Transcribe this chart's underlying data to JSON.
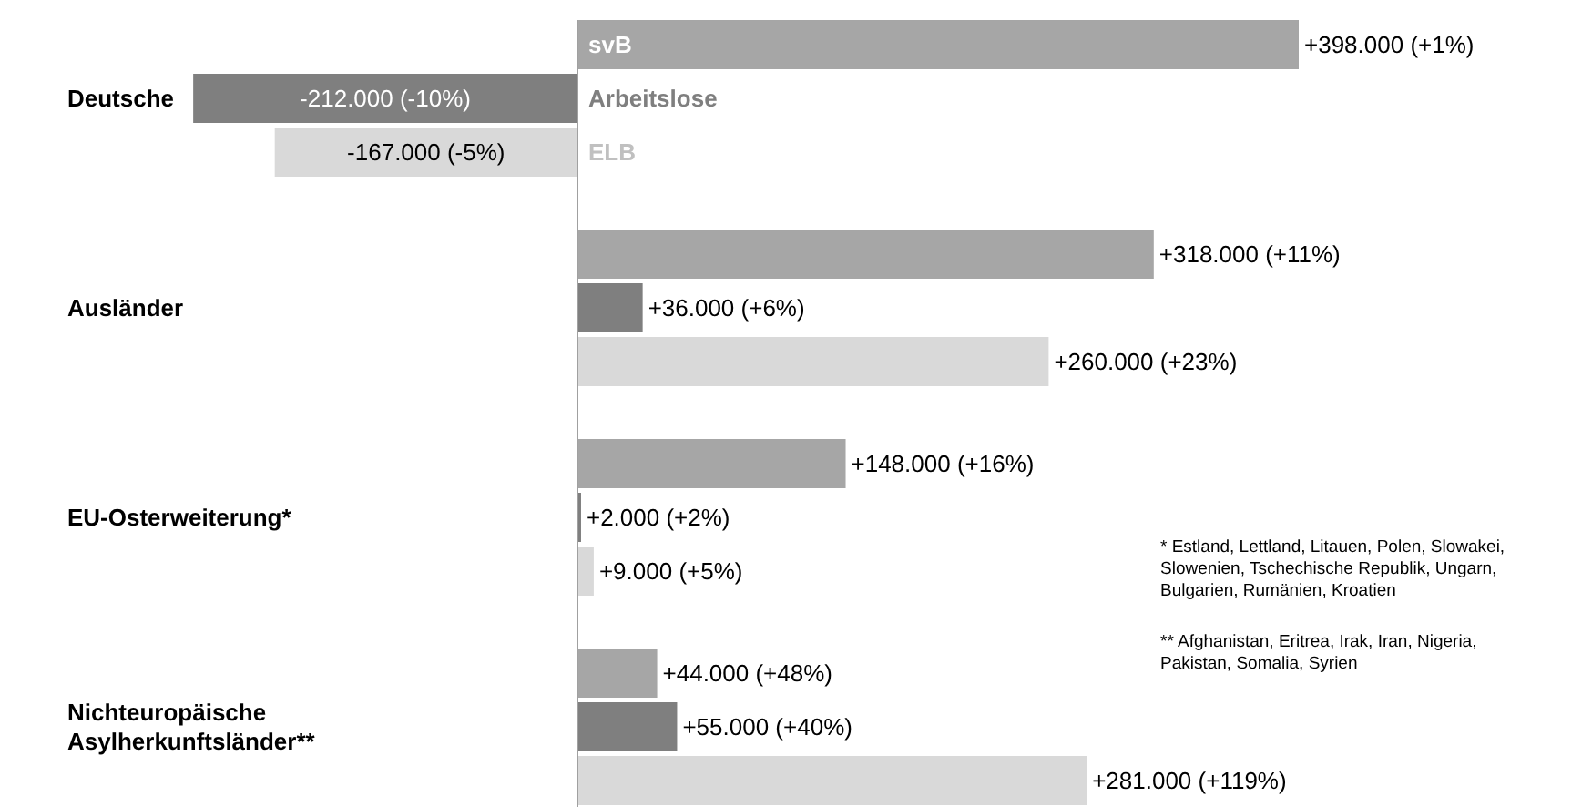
{
  "chart_data": {
    "type": "bar",
    "orientation": "horizontal",
    "categories": [
      "Deutsche",
      "Ausländer",
      "EU-Osterweiterung*",
      "Nichteuropäische Asylherkunftsländer**"
    ],
    "series": [
      {
        "name": "svB",
        "color": "#a6a6a6",
        "values": [
          398000,
          318000,
          148000,
          44000
        ],
        "value_labels": [
          "+398.000 (+1%)",
          "+318.000 (+11%)",
          "+148.000 (+16%)",
          "+44.000 (+48%)"
        ]
      },
      {
        "name": "Arbeitslose",
        "color": "#7f7f7f",
        "values": [
          -212000,
          36000,
          2000,
          55000
        ],
        "value_labels": [
          "-212.000 (-10%)",
          "+36.000 (+6%)",
          "+2.000 (+2%)",
          "+55.000 (+40%)"
        ]
      },
      {
        "name": "ELB",
        "color": "#d9d9d9",
        "values": [
          -167000,
          260000,
          9000,
          281000
        ],
        "value_labels": [
          "-167.000 (-5%)",
          "+260.000 (+23%)",
          "+9.000 (+5%)",
          "+281.000 (+119%)"
        ]
      }
    ],
    "annotations": [
      "* Estland, Lettland, Litauen, Polen, Slowakei, Slowenien, Tschechische Republik, Ungarn, Bulgarien, Rumänien, Kroatien",
      "** Afghanistan, Eritrea, Irak, Iran, Nigeria, Pakistan, Somalia, Syrien"
    ]
  }
}
